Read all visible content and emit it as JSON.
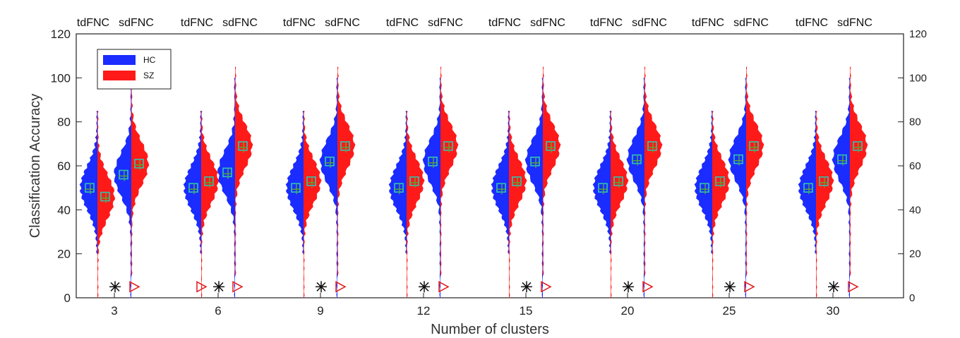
{
  "chart_data": {
    "type": "violin",
    "xlabel": "Number of clusters",
    "ylabel": "Classification Accuracy",
    "ylim": [
      0,
      120
    ],
    "yticks": [
      0,
      20,
      40,
      60,
      80,
      100,
      120
    ],
    "right_axis_ticks": [
      0,
      20,
      40,
      60,
      80,
      100,
      120
    ],
    "categories": [
      "3",
      "6",
      "9",
      "12",
      "15",
      "20",
      "25",
      "30"
    ],
    "group_labels": [
      "tdFNC",
      "sdFNC"
    ],
    "legend": {
      "position": "top-left",
      "entries": [
        {
          "name": "HC",
          "color": "#1a2cff"
        },
        {
          "name": "SZ",
          "color": "#ff1a1a"
        }
      ]
    },
    "colors": {
      "HC": "#1a2cff",
      "SZ": "#ff1a1a",
      "median_marker": "#2ec4b6",
      "mean_marker": "#55aa33",
      "star": "#111111",
      "triangle": "#e01a1a"
    },
    "series": [
      {
        "name": "tdFNC HC median",
        "values": [
          50,
          50,
          50,
          50,
          50,
          50,
          50,
          50
        ]
      },
      {
        "name": "tdFNC SZ median",
        "values": [
          46,
          53,
          53,
          53,
          53,
          53,
          53,
          53
        ]
      },
      {
        "name": "sdFNC HC median",
        "values": [
          56,
          57,
          62,
          62,
          62,
          63,
          63,
          63
        ]
      },
      {
        "name": "sdFNC SZ median",
        "values": [
          61,
          69,
          69,
          69,
          69,
          69,
          69,
          69
        ]
      }
    ],
    "distribution_shape": [
      {
        "group": "tdFNC",
        "HC": {
          "min": 20,
          "max": 85
        },
        "SZ": {
          "min": 0,
          "max": 85
        }
      },
      {
        "group": "sdFNC",
        "HC": {
          "min": 0,
          "max": 100
        },
        "SZ": {
          "min": 10,
          "max": 105
        }
      }
    ],
    "significance_markers": [
      {
        "category": "3",
        "markers": [
          "star",
          "triangle"
        ],
        "y": 5
      },
      {
        "category": "6",
        "markers": [
          "triangle",
          "star",
          "triangle"
        ],
        "y": 5
      },
      {
        "category": "9",
        "markers": [
          "star",
          "triangle"
        ],
        "y": 5
      },
      {
        "category": "12",
        "markers": [
          "star",
          "triangle"
        ],
        "y": 5
      },
      {
        "category": "15",
        "markers": [
          "star",
          "triangle"
        ],
        "y": 5
      },
      {
        "category": "20",
        "markers": [
          "star",
          "triangle"
        ],
        "y": 5
      },
      {
        "category": "25",
        "markers": [
          "star",
          "triangle"
        ],
        "y": 5
      },
      {
        "category": "30",
        "markers": [
          "star",
          "triangle"
        ],
        "y": 5
      }
    ],
    "grid": false
  }
}
